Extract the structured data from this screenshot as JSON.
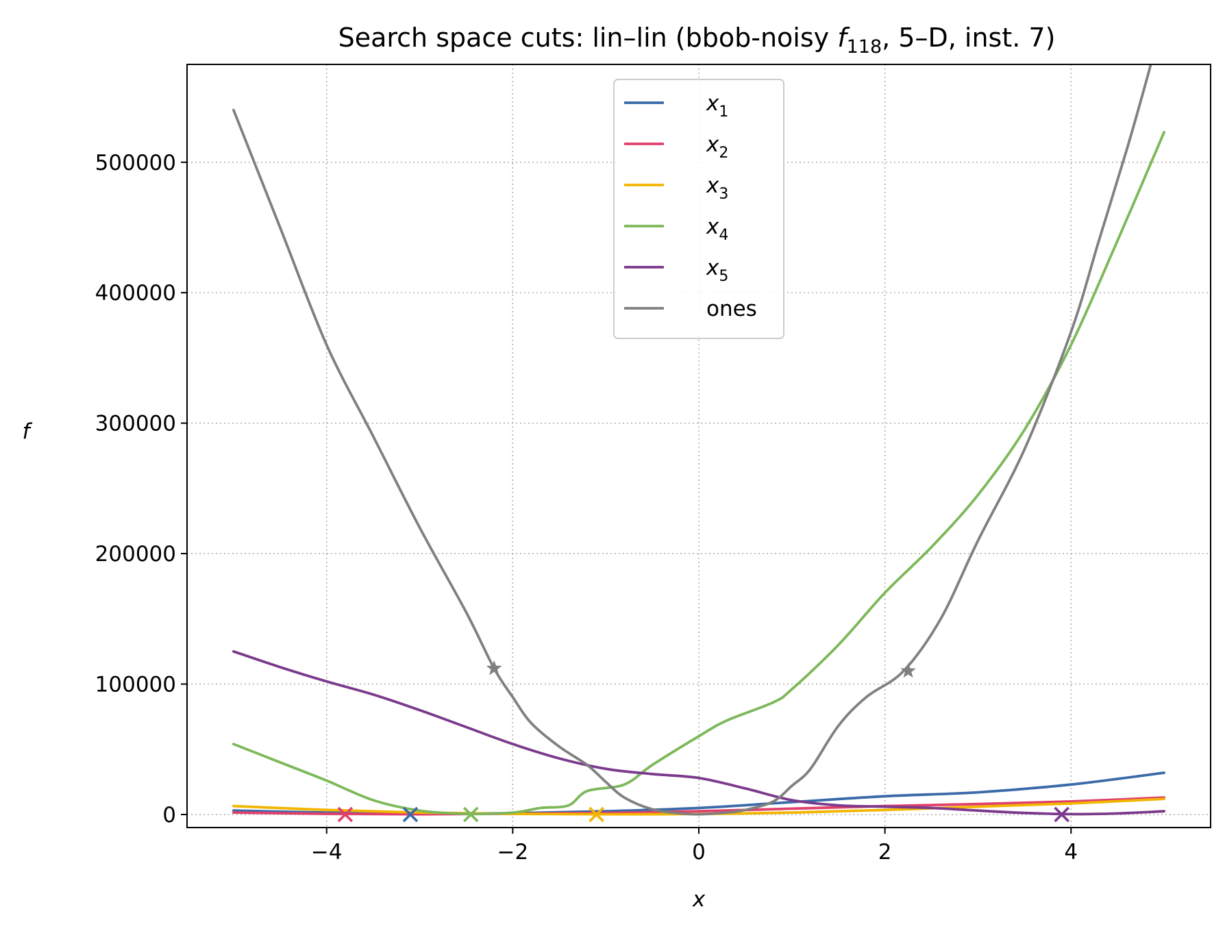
{
  "chart_data": {
    "type": "line",
    "title": "Search space cuts: lin–lin (bbob-noisy f118, 5–D, inst. 7)",
    "title_parts": {
      "pre": "Search space cuts: lin–lin (bbob-noisy ",
      "f_symbol": "f",
      "f_subscript": "118",
      "post": ", 5–D, inst. 7)"
    },
    "xlabel": "x",
    "ylabel": "f",
    "xlim": [
      -5.5,
      5.5
    ],
    "ylim": [
      -10000,
      575000
    ],
    "xticks": [
      -4,
      -2,
      0,
      2,
      4
    ],
    "xtick_labels": [
      "−4",
      "−2",
      "0",
      "2",
      "4"
    ],
    "yticks": [
      0,
      100000,
      200000,
      300000,
      400000,
      500000
    ],
    "ytick_labels": [
      "0",
      "100000",
      "200000",
      "300000",
      "400000",
      "500000"
    ],
    "grid": true,
    "legend_position": "top-center",
    "series": [
      {
        "name": "x1",
        "label_base": "x",
        "label_sub": "1",
        "color": "#3a6aa8",
        "points": [
          [
            -5,
            3000
          ],
          [
            -4,
            1500
          ],
          [
            -3,
            800
          ],
          [
            -2,
            1000
          ],
          [
            -1,
            2500
          ],
          [
            0,
            5000
          ],
          [
            1,
            9500
          ],
          [
            2,
            14000
          ],
          [
            3,
            17000
          ],
          [
            4,
            23000
          ],
          [
            5,
            32000
          ]
        ],
        "marker": {
          "type": "x",
          "x": -3.1,
          "y": 0
        }
      },
      {
        "name": "x2",
        "label_base": "x",
        "label_sub": "2",
        "color": "#e0406b",
        "points": [
          [
            -5,
            1500
          ],
          [
            -4,
            500
          ],
          [
            -3,
            200
          ],
          [
            -2,
            600
          ],
          [
            -1,
            1200
          ],
          [
            0,
            2500
          ],
          [
            1,
            4500
          ],
          [
            2,
            6500
          ],
          [
            3,
            8000
          ],
          [
            4,
            10000
          ],
          [
            5,
            13000
          ]
        ],
        "marker": {
          "type": "x",
          "x": -3.8,
          "y": 0
        }
      },
      {
        "name": "x3",
        "label_base": "x",
        "label_sub": "3",
        "color": "#f2b500",
        "points": [
          [
            -5,
            6500
          ],
          [
            -4,
            3500
          ],
          [
            -3,
            1500
          ],
          [
            -2,
            500
          ],
          [
            -1,
            200
          ],
          [
            0,
            400
          ],
          [
            1,
            1500
          ],
          [
            2,
            3500
          ],
          [
            3,
            6000
          ],
          [
            4,
            8500
          ],
          [
            5,
            12000
          ]
        ],
        "marker": {
          "type": "x",
          "x": -1.1,
          "y": 0
        }
      },
      {
        "name": "x4",
        "label_base": "x",
        "label_sub": "4",
        "color": "#7db85a",
        "points": [
          [
            -5,
            54000
          ],
          [
            -4.5,
            40000
          ],
          [
            -4,
            26000
          ],
          [
            -3.5,
            11000
          ],
          [
            -3,
            3000
          ],
          [
            -2.5,
            500
          ],
          [
            -2,
            1500
          ],
          [
            -1.7,
            5000
          ],
          [
            -1.4,
            7000
          ],
          [
            -1.2,
            18000
          ],
          [
            -0.8,
            23000
          ],
          [
            -0.5,
            38000
          ],
          [
            0,
            60000
          ],
          [
            0.3,
            72000
          ],
          [
            0.8,
            86000
          ],
          [
            1,
            96000
          ],
          [
            1.5,
            130000
          ],
          [
            2,
            170000
          ],
          [
            2.5,
            205000
          ],
          [
            3,
            245000
          ],
          [
            3.5,
            295000
          ],
          [
            4,
            360000
          ],
          [
            4.5,
            440000
          ],
          [
            5,
            523000
          ]
        ],
        "marker": {
          "type": "x",
          "x": -2.45,
          "y": 0
        }
      },
      {
        "name": "x5",
        "label_base": "x",
        "label_sub": "5",
        "color": "#7b3a8c",
        "points": [
          [
            -5,
            125000
          ],
          [
            -4.5,
            113000
          ],
          [
            -4,
            102000
          ],
          [
            -3.5,
            92000
          ],
          [
            -3,
            80000
          ],
          [
            -2.5,
            67000
          ],
          [
            -2,
            54000
          ],
          [
            -1.5,
            43000
          ],
          [
            -1,
            35000
          ],
          [
            -0.5,
            31000
          ],
          [
            0,
            28000
          ],
          [
            0.5,
            20000
          ],
          [
            1,
            11000
          ],
          [
            1.5,
            7000
          ],
          [
            2,
            6000
          ],
          [
            2.5,
            5000
          ],
          [
            3,
            3000
          ],
          [
            3.5,
            1200
          ],
          [
            4,
            300
          ],
          [
            4.5,
            800
          ],
          [
            5,
            2500
          ]
        ],
        "marker": {
          "type": "x",
          "x": 3.9,
          "y": 0
        }
      },
      {
        "name": "ones",
        "label_base": "ones",
        "label_sub": "",
        "color": "#808080",
        "points": [
          [
            -5,
            540000
          ],
          [
            -4.5,
            450000
          ],
          [
            -4,
            360000
          ],
          [
            -3.5,
            290000
          ],
          [
            -3,
            220000
          ],
          [
            -2.5,
            155000
          ],
          [
            -2.2,
            112000
          ],
          [
            -2,
            90000
          ],
          [
            -1.8,
            70000
          ],
          [
            -1.5,
            52000
          ],
          [
            -1.2,
            38000
          ],
          [
            -1,
            25000
          ],
          [
            -0.8,
            13000
          ],
          [
            -0.5,
            4000
          ],
          [
            -0.2,
            800
          ],
          [
            0,
            200
          ],
          [
            0.3,
            1500
          ],
          [
            0.5,
            3500
          ],
          [
            0.8,
            10000
          ],
          [
            1,
            22000
          ],
          [
            1.2,
            35000
          ],
          [
            1.5,
            68000
          ],
          [
            1.8,
            90000
          ],
          [
            2.2,
            110000
          ],
          [
            2.6,
            150000
          ],
          [
            3,
            210000
          ],
          [
            3.5,
            280000
          ],
          [
            4,
            370000
          ],
          [
            4.3,
            440000
          ],
          [
            4.6,
            510000
          ],
          [
            4.8,
            560000
          ],
          [
            4.95,
            600000
          ]
        ],
        "markers": [
          {
            "type": "star",
            "x": -2.2,
            "y": 112000
          },
          {
            "type": "star",
            "x": 2.25,
            "y": 110000
          }
        ]
      }
    ]
  }
}
